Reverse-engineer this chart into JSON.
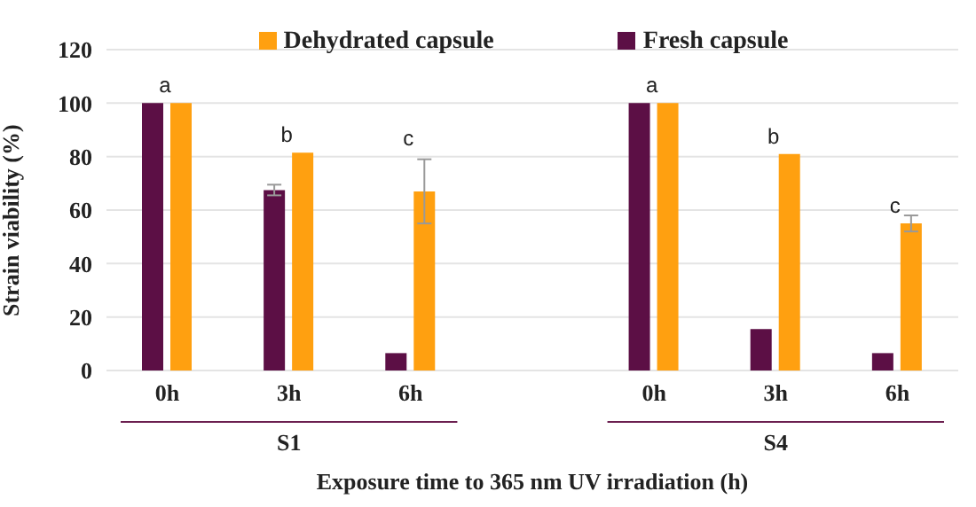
{
  "chart_data": {
    "type": "bar",
    "xlabel": "Exposure time to 365 nm UV irradiation (h)",
    "ylabel": "Strain viability (%)",
    "categories": [
      "0h",
      "3h",
      "6h",
      null,
      "0h",
      "3h",
      "6h"
    ],
    "series": [
      {
        "name": "Fresh capsule",
        "color": "#5c0f45",
        "values": [
          100,
          67.5,
          6.5,
          null,
          100,
          15.5,
          6.5
        ],
        "errors": [
          null,
          2,
          null,
          null,
          null,
          null,
          null
        ]
      },
      {
        "name": "Dehydrated capsule",
        "color": "#ffa010",
        "values": [
          100,
          81.5,
          67,
          null,
          100,
          81,
          55
        ],
        "errors": [
          null,
          null,
          12,
          null,
          null,
          null,
          3
        ],
        "value_labels": [
          "a",
          "b",
          "c",
          null,
          "a",
          "b",
          "c"
        ]
      }
    ],
    "annotations": [
      "S1",
      "S4"
    ],
    "ylim": [
      0,
      120
    ],
    "yticks": [
      0,
      20,
      40,
      60,
      80,
      100,
      120
    ],
    "grid": "y",
    "legend": "top"
  }
}
